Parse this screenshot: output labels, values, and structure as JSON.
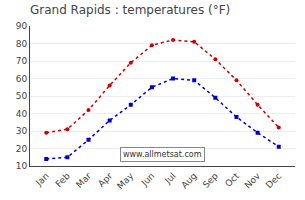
{
  "chart_data": {
    "type": "line",
    "title": "Grand Rapids : temperatures (°F)",
    "categories": [
      "Jan",
      "Feb",
      "Mar",
      "Apr",
      "May",
      "Jun",
      "Jul",
      "Aug",
      "Sep",
      "Oct",
      "Nov",
      "Dec"
    ],
    "series": [
      {
        "color": "#cc0000",
        "marker": "circle",
        "line_style": "dotted",
        "values": [
          29,
          31,
          42,
          56,
          69,
          79,
          82,
          81,
          71,
          59,
          45,
          32
        ]
      },
      {
        "color": "#0000cc",
        "marker": "square",
        "line_style": "dotted",
        "values": [
          14,
          15,
          25,
          36,
          45,
          55,
          60,
          59,
          49,
          38,
          29,
          21
        ]
      }
    ],
    "ylim": [
      10,
      90
    ],
    "yticks": [
      10,
      20,
      30,
      40,
      50,
      60,
      70,
      80,
      90
    ],
    "grid": "y",
    "annotation": "www.allmetsat.com"
  }
}
